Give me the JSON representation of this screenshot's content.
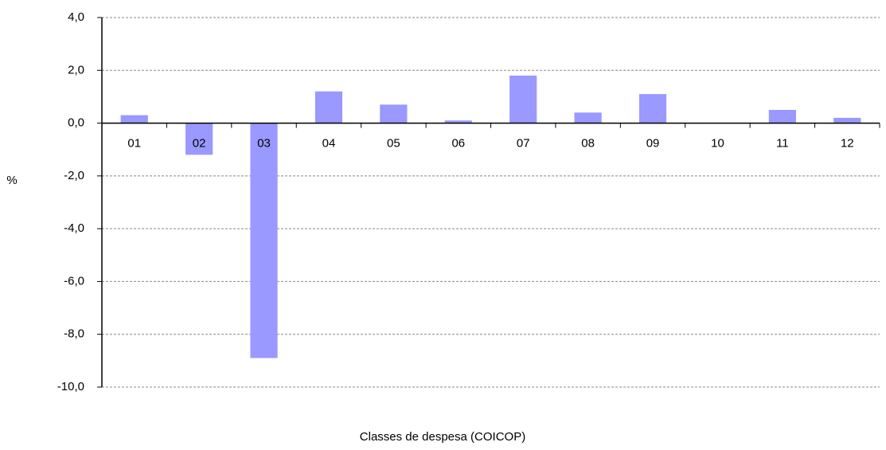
{
  "chart_data": {
    "type": "bar",
    "x_label": "Classes de despesa (COICOP)",
    "y_label": "%",
    "categories": [
      "01",
      "02",
      "03",
      "04",
      "05",
      "06",
      "07",
      "08",
      "09",
      "10",
      "11",
      "12"
    ],
    "values": [
      0.3,
      -1.2,
      -8.9,
      1.2,
      0.7,
      0.1,
      1.8,
      0.4,
      1.1,
      0,
      0.5,
      0.2
    ],
    "color": "#9999ff",
    "ylim": [
      -10,
      4
    ],
    "yticks": [
      {
        "value": -10,
        "label": "-10,0"
      },
      {
        "value": -8,
        "label": "-8,0"
      },
      {
        "value": -6,
        "label": "-6,0"
      },
      {
        "value": -4,
        "label": "-4,0"
      },
      {
        "value": -2,
        "label": "-2,0"
      },
      {
        "value": 0,
        "label": "0,0"
      },
      {
        "value": 2,
        "label": "2,0"
      },
      {
        "value": 4,
        "label": "4,0"
      }
    ],
    "grid": true
  }
}
